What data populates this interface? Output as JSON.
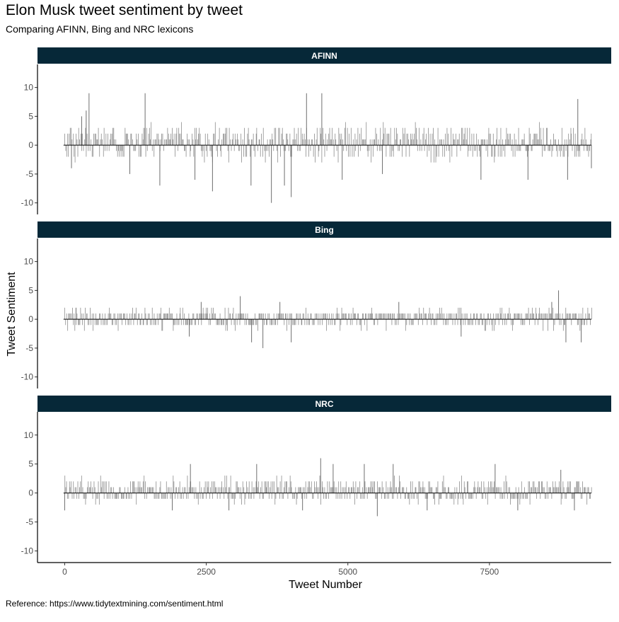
{
  "header": {
    "title": "Elon Musk tweet sentiment by tweet",
    "subtitle": "Comparing AFINN, Bing and NRC lexicons"
  },
  "caption": "Reference: https://www.tidytextmining.com/sentiment.html",
  "colors": {
    "strip_fill": "#062838",
    "strip_text": "#ffffff",
    "bar": "#8c8c8c",
    "axis": "#000000",
    "tick_text": "#4d4d4d"
  },
  "chart_data": {
    "type": "bar",
    "xlabel": "Tweet Number",
    "ylabel": "Tweet Sentiment",
    "xlim": [
      -480,
      9650
    ],
    "ylim": [
      -12,
      14
    ],
    "x_ticks": [
      0,
      2500,
      5000,
      7500
    ],
    "x_tick_labels": [
      "0",
      "2500",
      "5000",
      "7500"
    ],
    "y_ticks": [
      -10,
      -5,
      0,
      5,
      10
    ],
    "y_tick_labels": [
      "-10",
      "-5",
      "0",
      "5",
      "10"
    ],
    "grid": false,
    "facets": [
      {
        "name": "AFINN",
        "x_range": [
          0,
          9300
        ],
        "typical_range": [
          -2,
          3
        ],
        "values": [
          [
            300,
            5
          ],
          [
            380,
            6
          ],
          [
            430,
            9
          ],
          [
            1420,
            9
          ],
          [
            4270,
            9
          ],
          [
            4540,
            9
          ],
          [
            9060,
            8
          ],
          [
            3650,
            -10
          ],
          [
            4000,
            -9
          ],
          [
            2610,
            -8
          ],
          [
            1680,
            -7
          ],
          [
            3290,
            -7
          ],
          [
            3880,
            -7
          ],
          [
            2300,
            -6
          ],
          [
            4900,
            -6
          ],
          [
            7350,
            -6
          ],
          [
            8180,
            -6
          ],
          [
            8880,
            -6
          ],
          [
            1150,
            -5
          ],
          [
            5610,
            -5
          ],
          [
            9300,
            -4
          ],
          [
            120,
            -4
          ]
        ]
      },
      {
        "name": "Bing",
        "x_range": [
          0,
          9300
        ],
        "typical_range": [
          -1,
          1
        ],
        "values": [
          [
            8720,
            5
          ],
          [
            3100,
            4
          ],
          [
            3500,
            -5
          ],
          [
            3300,
            -4
          ],
          [
            4000,
            -4
          ],
          [
            8850,
            -4
          ],
          [
            9120,
            -4
          ],
          [
            2410,
            3
          ],
          [
            3800,
            3
          ],
          [
            5900,
            3
          ],
          [
            8600,
            3
          ],
          [
            200,
            2
          ],
          [
            2200,
            -3
          ],
          [
            7000,
            -3
          ]
        ]
      },
      {
        "name": "NRC",
        "x_range": [
          0,
          9300
        ],
        "typical_range": [
          -1,
          2
        ],
        "values": [
          [
            4520,
            6
          ],
          [
            2220,
            5
          ],
          [
            3390,
            5
          ],
          [
            4740,
            5
          ],
          [
            5290,
            5
          ],
          [
            5800,
            5
          ],
          [
            7600,
            5
          ],
          [
            8760,
            4
          ],
          [
            5520,
            -4
          ],
          [
            0,
            -3
          ],
          [
            1900,
            -3
          ],
          [
            2900,
            -3
          ],
          [
            4200,
            -3
          ],
          [
            6400,
            -3
          ],
          [
            8000,
            -3
          ],
          [
            9000,
            -3
          ]
        ]
      }
    ]
  }
}
